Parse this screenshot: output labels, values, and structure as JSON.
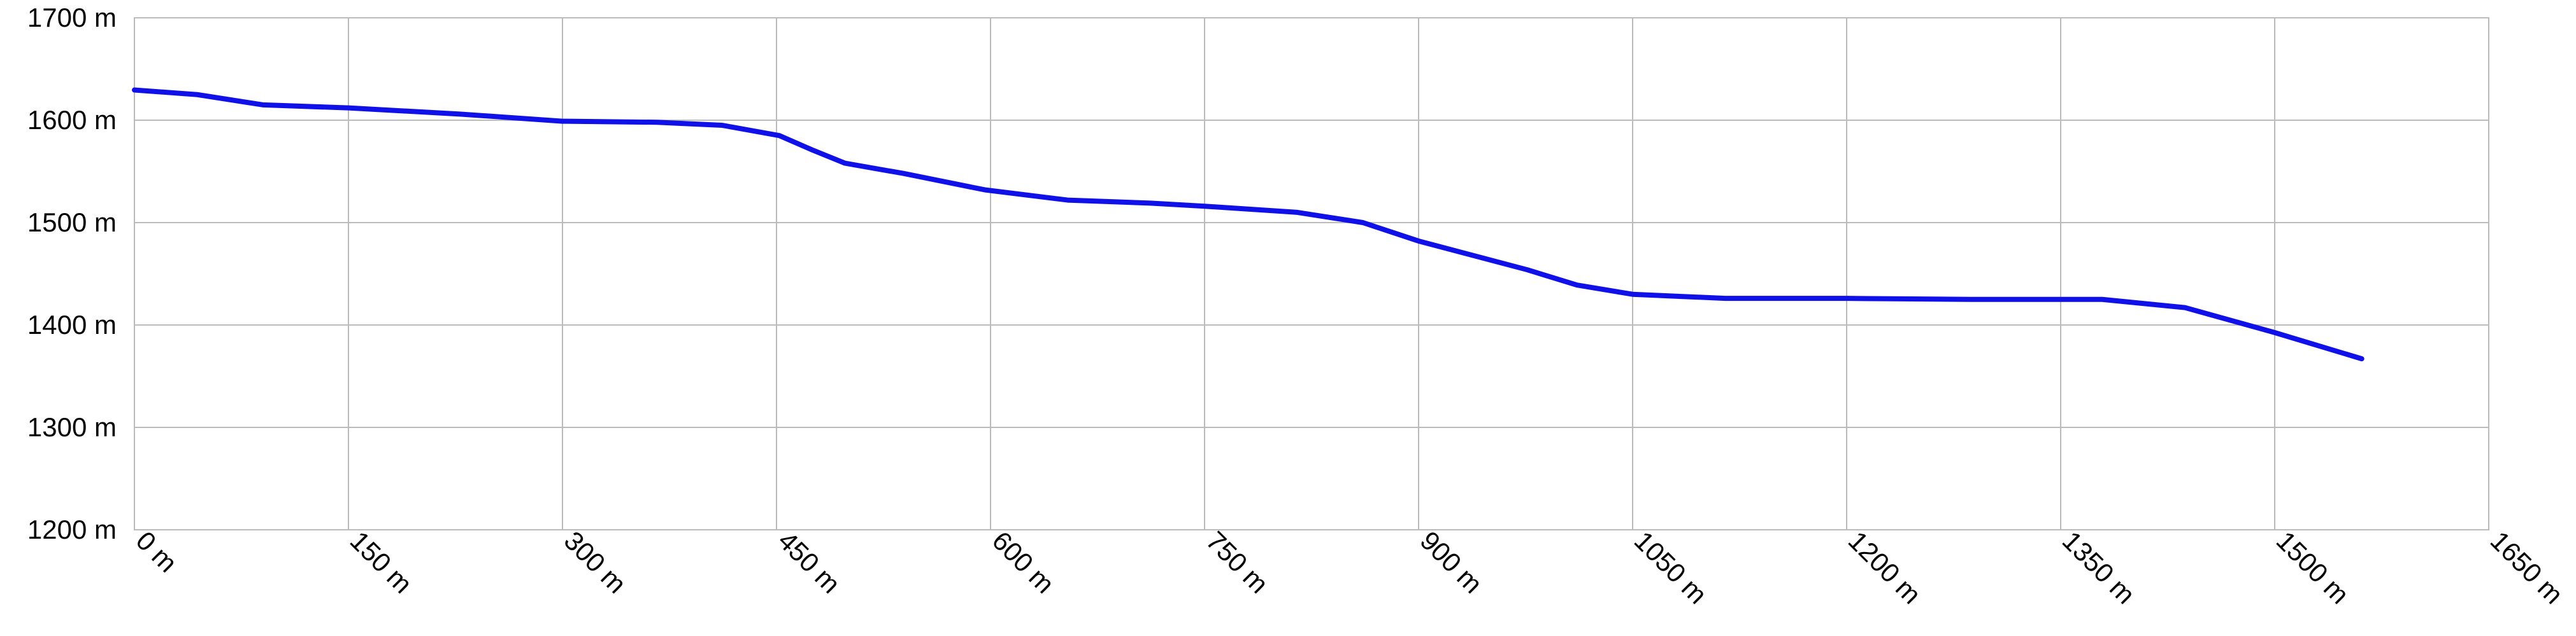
{
  "chart_data": {
    "type": "line",
    "x": [
      0,
      44,
      90,
      150,
      228,
      300,
      366,
      412,
      452,
      475,
      498,
      539,
      596,
      654,
      712,
      750,
      815,
      861,
      900,
      976,
      1011,
      1050,
      1115,
      1200,
      1287,
      1379,
      1437,
      1499,
      1561
    ],
    "series": [
      {
        "color": "#1010e8",
        "values": [
          1629.5,
          1625,
          1615,
          1612,
          1606,
          1599,
          1598,
          1595,
          1585,
          1571,
          1558,
          1548,
          1532,
          1522,
          1519,
          1516,
          1510,
          1500,
          1482,
          1454,
          1439,
          1430,
          1426,
          1426,
          1425,
          1425,
          1417,
          1393,
          1367
        ]
      }
    ],
    "xlim": [
      0,
      1650
    ],
    "xticks": [
      {
        "value": 0,
        "label": "0 m"
      },
      {
        "value": 150,
        "label": "150 m"
      },
      {
        "value": 300,
        "label": "300 m"
      },
      {
        "value": 450,
        "label": "450 m"
      },
      {
        "value": 600,
        "label": "600 m"
      },
      {
        "value": 750,
        "label": "750 m"
      },
      {
        "value": 900,
        "label": "900 m"
      },
      {
        "value": 1050,
        "label": "1050 m"
      },
      {
        "value": 1200,
        "label": "1200 m"
      },
      {
        "value": 1350,
        "label": "1350 m"
      },
      {
        "value": 1500,
        "label": "1500 m"
      },
      {
        "value": 1650,
        "label": "1650 m"
      }
    ],
    "ylim": [
      1200,
      1700
    ],
    "yticks": [
      {
        "value": 1200,
        "label": "1200 m"
      },
      {
        "value": 1300,
        "label": "1300 m"
      },
      {
        "value": 1400,
        "label": "1400 m"
      },
      {
        "value": 1500,
        "label": "1500 m"
      },
      {
        "value": 1600,
        "label": "1600 m"
      },
      {
        "value": 1700,
        "label": "1700 m"
      }
    ],
    "grid": true
  }
}
